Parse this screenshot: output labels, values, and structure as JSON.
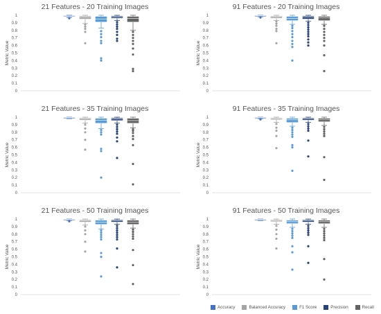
{
  "legend": [
    {
      "name": "Accuracy",
      "color": "#4472c4"
    },
    {
      "name": "Balanced Accuracy",
      "color": "#a5a5a5"
    },
    {
      "name": "F1 Score",
      "color": "#5b9bd5"
    },
    {
      "name": "Precision",
      "color": "#264478"
    },
    {
      "name": "Recall",
      "color": "#636363"
    }
  ],
  "chart_data": [
    {
      "type": "box",
      "title": "21 Features - 20 Training Images",
      "ylabel": "Metric Value",
      "ylim": [
        0,
        1
      ],
      "yticks": [
        "0",
        "0.1",
        "0.2",
        "0.3",
        "0.4",
        "0.5",
        "0.6",
        "0.7",
        "0.8",
        "0.9",
        "1"
      ],
      "grid": false,
      "series": [
        {
          "name": "Accuracy",
          "min": 0.97,
          "q1": 0.985,
          "median": 0.99,
          "q3": 0.995,
          "max": 1.0,
          "outliers": [
            0.96
          ]
        },
        {
          "name": "Balanced Accuracy",
          "min": 0.89,
          "q1": 0.95,
          "median": 0.975,
          "q3": 0.99,
          "max": 1.0,
          "outliers": [
            0.88,
            0.85,
            0.82,
            0.78,
            0.63
          ]
        },
        {
          "name": "F1 Score",
          "min": 0.83,
          "q1": 0.91,
          "median": 0.95,
          "q3": 0.985,
          "max": 1.0,
          "outliers": [
            0.79,
            0.75,
            0.71,
            0.66,
            0.63,
            0.43,
            0.4
          ]
        },
        {
          "name": "Precision",
          "min": 0.93,
          "q1": 0.96,
          "median": 0.975,
          "q3": 0.99,
          "max": 1.0,
          "outliers": [
            0.91,
            0.88,
            0.85,
            0.82,
            0.78,
            0.74,
            0.69,
            0.66
          ]
        },
        {
          "name": "Recall",
          "min": 0.8,
          "q1": 0.91,
          "median": 0.96,
          "q3": 0.985,
          "max": 1.0,
          "outliers": [
            0.78,
            0.74,
            0.7,
            0.66,
            0.62,
            0.56,
            0.48,
            0.29,
            0.26
          ]
        }
      ]
    },
    {
      "type": "box",
      "title": "91 Features - 20 Training Images",
      "ylabel": "Metric Value",
      "ylim": [
        0,
        1
      ],
      "yticks": [
        "0",
        "0.1",
        "0.2",
        "0.3",
        "0.4",
        "0.5",
        "0.6",
        "0.7",
        "0.8",
        "0.9",
        "1"
      ],
      "grid": false,
      "series": [
        {
          "name": "Accuracy",
          "min": 0.98,
          "q1": 0.99,
          "median": 0.995,
          "q3": 0.998,
          "max": 1.0,
          "outliers": [
            0.97
          ]
        },
        {
          "name": "Balanced Accuracy",
          "min": 0.93,
          "q1": 0.96,
          "median": 0.98,
          "q3": 0.99,
          "max": 1.0,
          "outliers": [
            0.92,
            0.89,
            0.86,
            0.82,
            0.79,
            0.63
          ]
        },
        {
          "name": "F1 Score",
          "min": 0.88,
          "q1": 0.93,
          "median": 0.96,
          "q3": 0.985,
          "max": 1.0,
          "outliers": [
            0.86,
            0.83,
            0.79,
            0.75,
            0.71,
            0.66,
            0.62,
            0.58,
            0.4
          ]
        },
        {
          "name": "Precision",
          "min": 0.92,
          "q1": 0.95,
          "median": 0.975,
          "q3": 0.99,
          "max": 1.0,
          "outliers": [
            0.9,
            0.87,
            0.84,
            0.81,
            0.78,
            0.75,
            0.72,
            0.68,
            0.64,
            0.6
          ]
        },
        {
          "name": "Recall",
          "min": 0.88,
          "q1": 0.93,
          "median": 0.965,
          "q3": 0.985,
          "max": 1.0,
          "outliers": [
            0.86,
            0.82,
            0.78,
            0.74,
            0.7,
            0.66,
            0.6,
            0.47,
            0.26
          ]
        }
      ]
    },
    {
      "type": "box",
      "title": "21 Features - 35 Training Images",
      "ylabel": "Metric Value",
      "ylim": [
        0,
        1
      ],
      "yticks": [
        "0",
        "0.1",
        "0.2",
        "0.3",
        "0.4",
        "0.5",
        "0.6",
        "0.7",
        "0.8",
        "0.9",
        "1"
      ],
      "grid": false,
      "series": [
        {
          "name": "Accuracy",
          "min": 0.98,
          "q1": 0.99,
          "median": 0.995,
          "q3": 0.998,
          "max": 1.0,
          "outliers": []
        },
        {
          "name": "Balanced Accuracy",
          "min": 0.92,
          "q1": 0.96,
          "median": 0.98,
          "q3": 0.99,
          "max": 1.0,
          "outliers": [
            0.9,
            0.85,
            0.8,
            0.7,
            0.57
          ]
        },
        {
          "name": "F1 Score",
          "min": 0.85,
          "q1": 0.92,
          "median": 0.96,
          "q3": 0.985,
          "max": 1.0,
          "outliers": [
            0.83,
            0.8,
            0.77,
            0.58,
            0.55,
            0.2
          ]
        },
        {
          "name": "Precision",
          "min": 0.92,
          "q1": 0.955,
          "median": 0.975,
          "q3": 0.99,
          "max": 1.0,
          "outliers": [
            0.9,
            0.87,
            0.84,
            0.81,
            0.78,
            0.73,
            0.68,
            0.46
          ]
        },
        {
          "name": "Recall",
          "min": 0.86,
          "q1": 0.92,
          "median": 0.955,
          "q3": 0.985,
          "max": 1.0,
          "outliers": [
            0.84,
            0.82,
            0.79,
            0.75,
            0.71,
            0.63,
            0.38,
            0.11
          ]
        }
      ]
    },
    {
      "type": "box",
      "title": "91 Features - 35 Training Images",
      "ylabel": "Metric Value",
      "ylim": [
        0,
        1
      ],
      "yticks": [
        "0",
        "0.1",
        "0.2",
        "0.3",
        "0.4",
        "0.5",
        "0.6",
        "0.7",
        "0.8",
        "0.9",
        "1"
      ],
      "grid": false,
      "series": [
        {
          "name": "Accuracy",
          "min": 0.98,
          "q1": 0.99,
          "median": 0.995,
          "q3": 0.998,
          "max": 1.0,
          "outliers": [
            0.97
          ]
        },
        {
          "name": "Balanced Accuracy",
          "min": 0.93,
          "q1": 0.965,
          "median": 0.98,
          "q3": 0.99,
          "max": 1.0,
          "outliers": [
            0.91,
            0.86,
            0.82,
            0.75,
            0.59
          ]
        },
        {
          "name": "F1 Score",
          "min": 0.88,
          "q1": 0.93,
          "median": 0.965,
          "q3": 0.985,
          "max": 1.0,
          "outliers": [
            0.86,
            0.83,
            0.8,
            0.77,
            0.74,
            0.63,
            0.6,
            0.29
          ]
        },
        {
          "name": "Precision",
          "min": 0.93,
          "q1": 0.96,
          "median": 0.98,
          "q3": 0.99,
          "max": 1.0,
          "outliers": [
            0.91,
            0.88,
            0.85,
            0.82,
            0.69,
            0.48
          ]
        },
        {
          "name": "Recall",
          "min": 0.89,
          "q1": 0.94,
          "median": 0.965,
          "q3": 0.985,
          "max": 1.0,
          "outliers": [
            0.87,
            0.84,
            0.81,
            0.78,
            0.75,
            0.47,
            0.17
          ]
        }
      ]
    },
    {
      "type": "box",
      "title": "21 Features - 50 Training Images",
      "ylabel": "Metric Value",
      "ylim": [
        0,
        1
      ],
      "yticks": [
        "0",
        "0.1",
        "0.2",
        "0.3",
        "0.4",
        "0.5",
        "0.6",
        "0.7",
        "0.8",
        "0.9",
        "1"
      ],
      "grid": false,
      "series": [
        {
          "name": "Accuracy",
          "min": 0.98,
          "q1": 0.99,
          "median": 0.995,
          "q3": 0.998,
          "max": 1.0,
          "outliers": [
            0.97
          ]
        },
        {
          "name": "Balanced Accuracy",
          "min": 0.92,
          "q1": 0.96,
          "median": 0.98,
          "q3": 0.99,
          "max": 1.0,
          "outliers": [
            0.9,
            0.85,
            0.8,
            0.7,
            0.57
          ]
        },
        {
          "name": "F1 Score",
          "min": 0.87,
          "q1": 0.93,
          "median": 0.96,
          "q3": 0.985,
          "max": 1.0,
          "outliers": [
            0.85,
            0.82,
            0.79,
            0.76,
            0.73,
            0.55,
            0.5,
            0.24
          ]
        },
        {
          "name": "Precision",
          "min": 0.93,
          "q1": 0.96,
          "median": 0.98,
          "q3": 0.99,
          "max": 1.0,
          "outliers": [
            0.91,
            0.88,
            0.85,
            0.82,
            0.79,
            0.76,
            0.73,
            0.61,
            0.36
          ]
        },
        {
          "name": "Recall",
          "min": 0.88,
          "q1": 0.93,
          "median": 0.96,
          "q3": 0.985,
          "max": 1.0,
          "outliers": [
            0.86,
            0.83,
            0.8,
            0.77,
            0.74,
            0.59,
            0.39,
            0.14
          ]
        }
      ]
    },
    {
      "type": "box",
      "title": "91 Features - 50 Training Images",
      "ylabel": "Metric Value",
      "ylim": [
        0,
        1
      ],
      "yticks": [
        "0",
        "0.1",
        "0.2",
        "0.3",
        "0.4",
        "0.5",
        "0.6",
        "0.7",
        "0.8",
        "0.9",
        "1"
      ],
      "grid": false,
      "series": [
        {
          "name": "Accuracy",
          "min": 0.98,
          "q1": 0.99,
          "median": 0.995,
          "q3": 0.998,
          "max": 1.0,
          "outliers": []
        },
        {
          "name": "Balanced Accuracy",
          "min": 0.93,
          "q1": 0.965,
          "median": 0.98,
          "q3": 0.99,
          "max": 1.0,
          "outliers": [
            0.91,
            0.86,
            0.8,
            0.74,
            0.61
          ]
        },
        {
          "name": "F1 Score",
          "min": 0.89,
          "q1": 0.94,
          "median": 0.965,
          "q3": 0.985,
          "max": 1.0,
          "outliers": [
            0.87,
            0.84,
            0.81,
            0.78,
            0.75,
            0.64,
            0.56,
            0.33
          ]
        },
        {
          "name": "Precision",
          "min": 0.93,
          "q1": 0.96,
          "median": 0.98,
          "q3": 0.99,
          "max": 1.0,
          "outliers": [
            0.91,
            0.88,
            0.85,
            0.82,
            0.79,
            0.64,
            0.42
          ]
        },
        {
          "name": "Recall",
          "min": 0.89,
          "q1": 0.94,
          "median": 0.965,
          "q3": 0.985,
          "max": 1.0,
          "outliers": [
            0.87,
            0.84,
            0.81,
            0.78,
            0.75,
            0.72,
            0.47,
            0.2
          ]
        }
      ]
    }
  ]
}
